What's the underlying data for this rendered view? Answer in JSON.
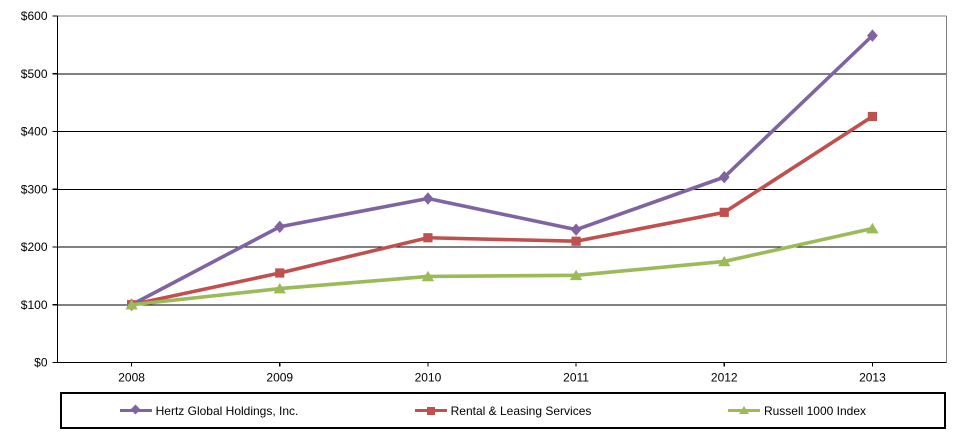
{
  "chart_data": {
    "type": "line",
    "categories": [
      "2008",
      "2009",
      "2010",
      "2011",
      "2012",
      "2013"
    ],
    "series": [
      {
        "name": "Hertz Global Holdings, Inc.",
        "color": "#8064A2",
        "marker": "diamond",
        "values": [
          100,
          235,
          284,
          230,
          321,
          566
        ]
      },
      {
        "name": "Rental & Leasing Services",
        "color": "#C0504D",
        "marker": "square",
        "values": [
          100,
          155,
          216,
          210,
          260,
          426
        ]
      },
      {
        "name": "Russell 1000 Index",
        "color": "#9BBB59",
        "marker": "triangle",
        "values": [
          100,
          128,
          149,
          151,
          175,
          232
        ]
      }
    ],
    "y_axis": {
      "min": 0,
      "max": 600,
      "step": 100,
      "tick_labels": [
        "$0",
        "$100",
        "$200",
        "$300",
        "$400",
        "$500",
        "$600"
      ]
    },
    "x_axis": {
      "tick_labels": [
        "2008",
        "2009",
        "2010",
        "2011",
        "2012",
        "2013"
      ]
    },
    "legend_position": "bottom",
    "grid": true,
    "colors": {
      "gridline": "#000000",
      "plot_border": "#808080",
      "axis": "#000000",
      "text": "#000000",
      "background": "#FFFFFF"
    }
  }
}
